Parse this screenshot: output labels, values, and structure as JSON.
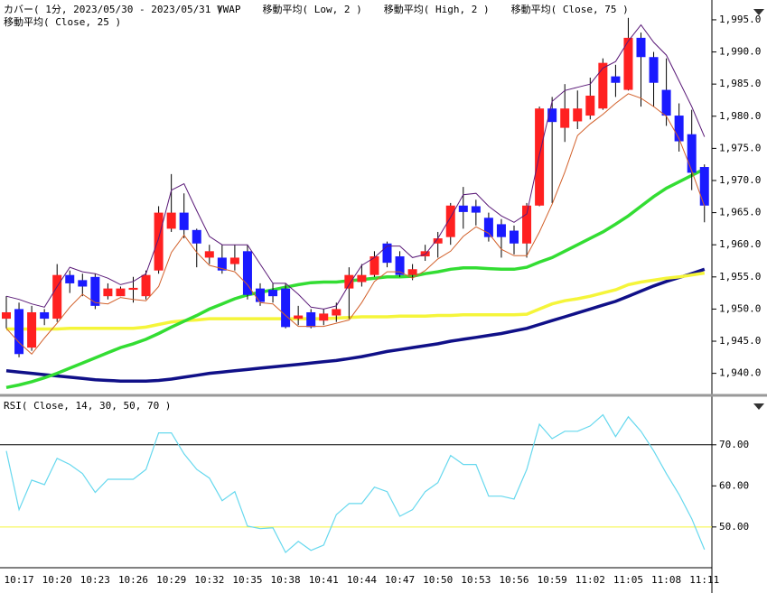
{
  "chart_data": [
    {
      "type": "candlestick",
      "title": "カバー( 1分, 2023/05/30 - 2023/05/31 )",
      "categories": [
        null,
        "10:17",
        null,
        null,
        "10:20",
        null,
        null,
        "10:23",
        null,
        null,
        "10:26",
        null,
        null,
        "10:29",
        null,
        null,
        "10:32",
        null,
        null,
        "10:35",
        null,
        null,
        "10:38",
        null,
        null,
        "10:41",
        null,
        null,
        "10:44",
        null,
        null,
        "10:47",
        null,
        null,
        "10:50",
        null,
        null,
        "10:53",
        null,
        null,
        "10:56",
        null,
        null,
        "10:59",
        null,
        null,
        "11:02",
        null,
        null,
        "11:05",
        null,
        null,
        "11:08",
        null,
        null,
        "11:11"
      ],
      "open": [
        1948.5,
        1950,
        1944,
        1949.5,
        1948.5,
        1955.3,
        1954.5,
        1955,
        1952,
        1952,
        1953,
        1952,
        1956,
        1962.5,
        1965,
        1962.3,
        1958,
        1958,
        1957,
        1959,
        1953.2,
        1953,
        1953.2,
        1948.5,
        1949.5,
        1948.2,
        1949,
        1953.2,
        1954.2,
        1955.3,
        1960.2,
        1958.2,
        1955.3,
        1958.2,
        1960.2,
        1961.2,
        1966.1,
        1966,
        1964.2,
        1963.2,
        1962.2,
        1960.2,
        1966.1,
        1981.2,
        1978.2,
        1979.2,
        1980.1,
        1981.2,
        1986.2,
        1984.1,
        1992.2,
        1989.2,
        1984.1,
        1980.1,
        1977.2,
        1972.1
      ],
      "high": [
        1952,
        1951,
        1950.5,
        1950,
        1957,
        1956,
        1955.5,
        1955.5,
        1954,
        1953.5,
        1955,
        1956,
        1966,
        1971,
        1968,
        1962.5,
        1960,
        1960,
        1960,
        1960,
        1954,
        1954,
        1954,
        1950.5,
        1950,
        1950,
        1951,
        1956.5,
        1957,
        1959,
        1960.5,
        1959,
        1957,
        1960,
        1962,
        1966.5,
        1969,
        1967,
        1965,
        1964,
        1963,
        1966.5,
        1981.5,
        1983,
        1985,
        1984,
        1986,
        1989,
        1988,
        1995.3,
        1993,
        1990,
        1989,
        1982,
        1981,
        1972.5
      ],
      "low": [
        1947,
        1942.5,
        1943.5,
        1947.5,
        1948,
        1952.5,
        1952,
        1950,
        1951.5,
        1952,
        1951,
        1951.5,
        1955.5,
        1962,
        1961,
        1956.5,
        1957,
        1955.5,
        1956,
        1951.5,
        1950.5,
        1951,
        1947,
        1947.5,
        1947,
        1947.5,
        1948,
        1948.5,
        1953.5,
        1955,
        1956.5,
        1955,
        1954.5,
        1957.5,
        1958,
        1960,
        1962.5,
        1963,
        1960.5,
        1958,
        1958.5,
        1958,
        1966,
        1966.5,
        1976,
        1978,
        1979.5,
        1981,
        1983,
        1984,
        1981.5,
        1981.5,
        1978.5,
        1974.5,
        1968.5,
        1963.5
      ],
      "close": [
        1949.5,
        1943,
        1949.5,
        1948.5,
        1955.3,
        1954,
        1953.5,
        1950.5,
        1953.2,
        1953.2,
        1953.3,
        1955.3,
        1965,
        1965,
        1962.3,
        1960.2,
        1959,
        1956,
        1958,
        1952.2,
        1951.1,
        1952,
        1947.2,
        1949,
        1947.2,
        1949.3,
        1950,
        1955.3,
        1955.3,
        1958.2,
        1957.2,
        1955.3,
        1956.2,
        1959,
        1961,
        1966.1,
        1965.1,
        1965,
        1961.2,
        1961.2,
        1960.2,
        1966.1,
        1981.2,
        1979.1,
        1981.2,
        1981.2,
        1983.2,
        1988.3,
        1985.2,
        1992.2,
        1989.2,
        1985.2,
        1980.1,
        1976.1,
        1971.2,
        1966.1
      ],
      "up_color": "#ff2020",
      "down_color": "#1a1aff",
      "series": [
        {
          "name": "VWAP",
          "color": "#101088",
          "width": 3.5,
          "values": [
            1940.4,
            1940.2,
            1940,
            1939.8,
            1939.6,
            1939.4,
            1939.2,
            1939,
            1938.9,
            1938.8,
            1938.8,
            1938.8,
            1938.9,
            1939.1,
            1939.4,
            1939.7,
            1940,
            1940.2,
            1940.4,
            1940.6,
            1940.8,
            1941,
            1941.2,
            1941.4,
            1941.6,
            1941.8,
            1942,
            1942.3,
            1942.6,
            1943,
            1943.4,
            1943.7,
            1944,
            1944.3,
            1944.6,
            1945,
            1945.3,
            1945.6,
            1945.9,
            1946.2,
            1946.6,
            1947,
            1947.6,
            1948.2,
            1948.8,
            1949.4,
            1950,
            1950.6,
            1951.2,
            1952,
            1952.8,
            1953.6,
            1954.3,
            1954.9,
            1955.5,
            1956.2
          ]
        },
        {
          "name": "移動平均( Low, 2 )",
          "color": "#d2602a",
          "width": 1,
          "values": [
            1947,
            1944.8,
            1943,
            1945.5,
            1947.8,
            1950.3,
            1952.3,
            1951,
            1950.8,
            1951.8,
            1951.5,
            1951.3,
            1953.5,
            1958.8,
            1961.5,
            1958.8,
            1956.8,
            1956.3,
            1955.8,
            1953.8,
            1951,
            1950.8,
            1949,
            1947.3,
            1947.3,
            1947.3,
            1947.8,
            1948.3,
            1951,
            1954.3,
            1955.8,
            1955.8,
            1954.8,
            1956,
            1957.8,
            1959,
            1961.3,
            1962.8,
            1961.8,
            1959.3,
            1958.3,
            1958.3,
            1962,
            1966.3,
            1971.3,
            1977,
            1978.8,
            1980.3,
            1982,
            1983.5,
            1982.8,
            1981.5,
            1980,
            1976.5,
            1971.5,
            1966
          ]
        },
        {
          "name": "移動平均( High, 2 )",
          "color": "#5a1a78",
          "width": 1,
          "values": [
            1952,
            1951.5,
            1950.8,
            1950.3,
            1953.5,
            1956.5,
            1955.8,
            1955.5,
            1954.8,
            1953.8,
            1954.3,
            1955.5,
            1961,
            1968.5,
            1969.5,
            1965.3,
            1961.3,
            1960,
            1960,
            1960,
            1957,
            1954,
            1954,
            1952.3,
            1950.3,
            1950,
            1950.5,
            1953.8,
            1956.8,
            1958,
            1959.8,
            1959.8,
            1958,
            1958.5,
            1961,
            1964.3,
            1967.8,
            1968,
            1966,
            1964.5,
            1963.5,
            1964.8,
            1974,
            1982.3,
            1984,
            1984.5,
            1985,
            1987.5,
            1988.5,
            1991.7,
            1994.2,
            1991.5,
            1989.5,
            1985.5,
            1981.5,
            1976.8
          ]
        },
        {
          "name": "移動平均( Close, 75 )",
          "color": "#f5f53a",
          "width": 3.5,
          "values": [
            1946.9,
            1946.9,
            1946.9,
            1946.9,
            1946.9,
            1947,
            1947,
            1947,
            1947,
            1947,
            1947,
            1947.2,
            1947.6,
            1948,
            1948.2,
            1948.3,
            1948.5,
            1948.5,
            1948.5,
            1948.5,
            1948.5,
            1948.5,
            1948.5,
            1948.5,
            1948.5,
            1948.5,
            1948.6,
            1948.7,
            1948.8,
            1948.8,
            1948.8,
            1948.9,
            1948.9,
            1948.9,
            1949,
            1949,
            1949.1,
            1949.1,
            1949.1,
            1949.1,
            1949.1,
            1949.2,
            1950,
            1950.8,
            1951.3,
            1951.6,
            1952,
            1952.5,
            1953,
            1953.8,
            1954.2,
            1954.5,
            1954.8,
            1955,
            1955.3,
            1955.6
          ]
        },
        {
          "name": "移動平均( Close, 25 )",
          "color": "#33dd33",
          "width": 3.5,
          "values": [
            1937.8,
            1938.2,
            1938.7,
            1939.3,
            1940,
            1940.8,
            1941.6,
            1942.4,
            1943.2,
            1944,
            1944.6,
            1945.3,
            1946.2,
            1947.2,
            1948.1,
            1949,
            1950,
            1950.8,
            1951.6,
            1952.2,
            1952.6,
            1953,
            1953.4,
            1953.8,
            1954.1,
            1954.2,
            1954.2,
            1954.4,
            1954.6,
            1954.8,
            1955,
            1955,
            1955.1,
            1955.5,
            1955.8,
            1956.2,
            1956.4,
            1956.4,
            1956.3,
            1956.2,
            1956.2,
            1956.5,
            1957.3,
            1958,
            1959,
            1960,
            1961,
            1962,
            1963.2,
            1964.5,
            1966,
            1967.5,
            1968.8,
            1969.8,
            1970.8,
            1971.8
          ]
        }
      ],
      "ylim": [
        1937,
        1997.8
      ],
      "yticks": [
        {
          "value": 1940,
          "label": "1,940.0"
        },
        {
          "value": 1945,
          "label": "1,945.0"
        },
        {
          "value": 1950,
          "label": "1,950.0"
        },
        {
          "value": 1955,
          "label": "1,955.0"
        },
        {
          "value": 1960,
          "label": "1,960.0"
        },
        {
          "value": 1965,
          "label": "1,965.0"
        },
        {
          "value": 1970,
          "label": "1,970.0"
        },
        {
          "value": 1975,
          "label": "1,975.0"
        },
        {
          "value": 1980,
          "label": "1,980.0"
        },
        {
          "value": 1985,
          "label": "1,985.0"
        },
        {
          "value": 1990,
          "label": "1,990.0"
        },
        {
          "value": 1995,
          "label": "1,995.0"
        }
      ]
    },
    {
      "type": "line",
      "title": "RSI( Close, 14, 30, 50, 70 )",
      "color": "#66d8ee",
      "values": [
        68.5,
        54.2,
        61.4,
        60.3,
        66.7,
        65.2,
        63,
        58.4,
        61.6,
        61.6,
        61.6,
        64,
        72.9,
        72.9,
        67.8,
        64,
        61.9,
        56.4,
        58.6,
        50.2,
        49.6,
        49.8,
        43.8,
        46.5,
        44.3,
        45.6,
        53,
        55.7,
        55.7,
        59.7,
        58.6,
        52.6,
        54.2,
        58.6,
        60.8,
        67.4,
        65.2,
        65.2,
        57.5,
        57.5,
        56.8,
        64,
        75,
        71.5,
        73.3,
        73.3,
        74.6,
        77.3,
        72,
        76.8,
        73.3,
        68.5,
        63,
        57.9,
        52,
        44.5
      ],
      "reference_lines": [
        {
          "value": 70,
          "color": "#000000"
        },
        {
          "value": 50,
          "color": "#f5f53a"
        }
      ],
      "ylim": [
        40.3,
        80.5
      ],
      "yticks": [
        {
          "value": 50,
          "label": "50.00"
        },
        {
          "value": 60,
          "label": "60.00"
        },
        {
          "value": 70,
          "label": "70.00"
        }
      ]
    }
  ]
}
